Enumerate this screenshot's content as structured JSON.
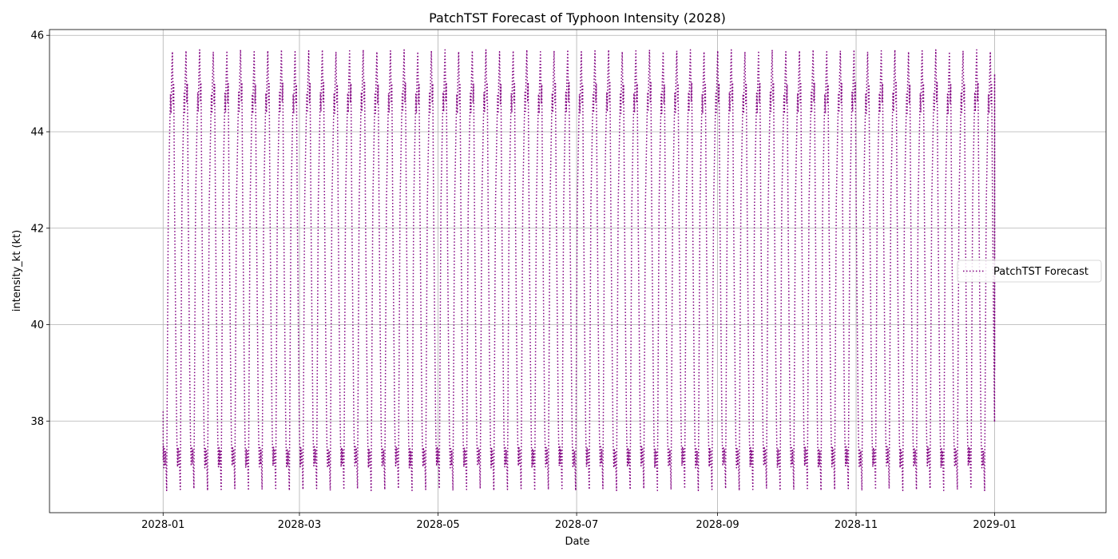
{
  "chart_data": {
    "type": "line",
    "title": "PatchTST Forecast of Typhoon Intensity (2028)",
    "xlabel": "Date",
    "ylabel": "intensity_kt (kt)",
    "x_range": [
      "2027-11-12",
      "2029-02-19"
    ],
    "ylim": [
      36.1,
      46.12
    ],
    "grid": true,
    "legend_position": "center-right",
    "x_ticks": [
      "2028-01",
      "2028-03",
      "2028-05",
      "2028-07",
      "2028-09",
      "2028-11",
      "2029-01"
    ],
    "y_ticks": [
      38,
      40,
      42,
      44,
      46
    ],
    "series": [
      {
        "name": "PatchTST Forecast",
        "color": "#800080",
        "line_style": "dotted",
        "x_start": "2028-01-01",
        "x_end": "2029-01-01",
        "approx_cycle_days": 6.0,
        "y_min": 36.58,
        "y_max": 45.68,
        "last_value": 39.05
      }
    ]
  }
}
